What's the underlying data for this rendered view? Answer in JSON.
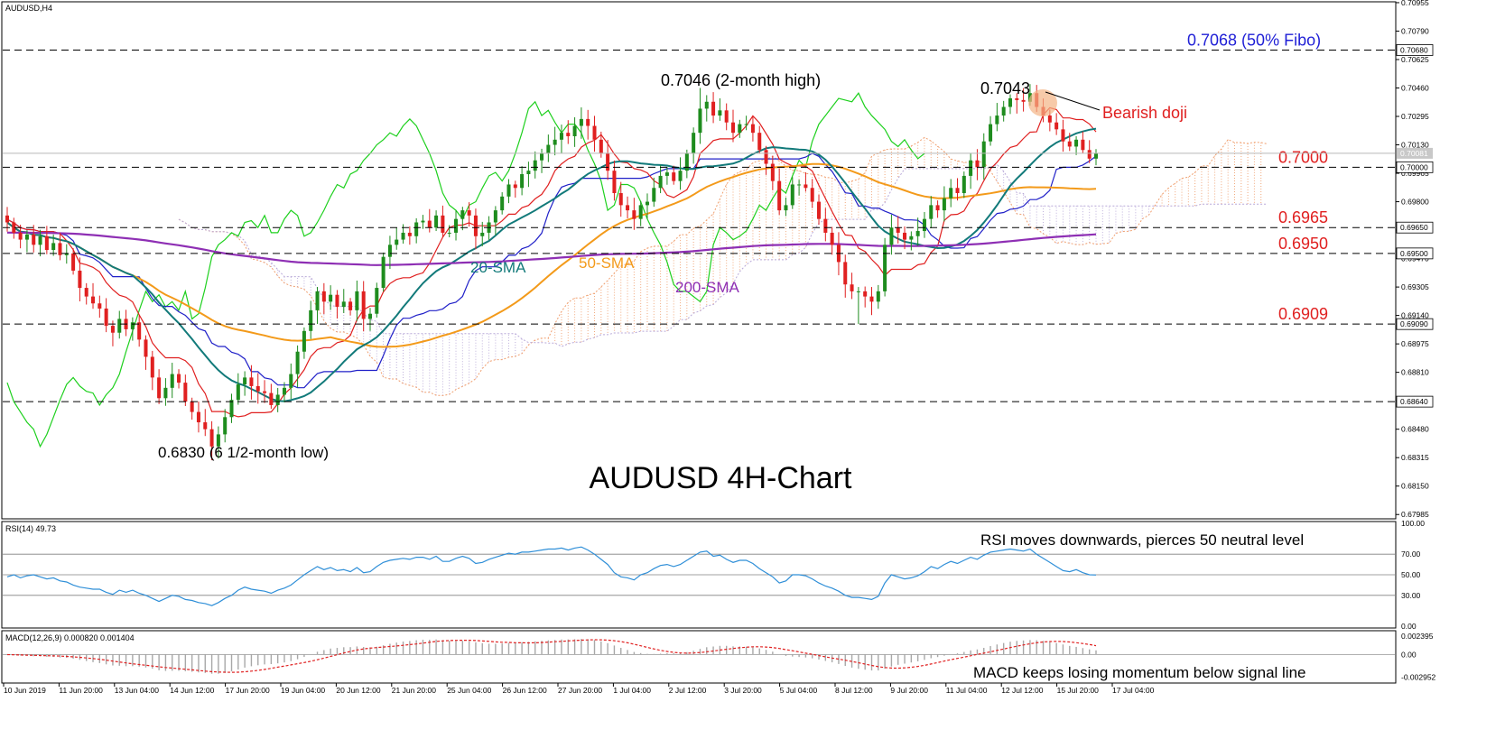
{
  "chart_data": [
    {
      "panel": "price",
      "type": "candlestick",
      "symbol_label": "AUDUSD,H4",
      "title": "AUDUSD 4H-Chart",
      "ylim": [
        0.6796,
        0.7096
      ],
      "y_ticks": [
        "0.70955",
        "0.70790",
        "0.70625",
        "0.70460",
        "0.70295",
        "0.70130",
        "0.69965",
        "0.69800",
        "0.69635",
        "0.69470",
        "0.69305",
        "0.69140",
        "0.68975",
        "0.68810",
        "0.68645",
        "0.68480",
        "0.68315",
        "0.68150",
        "0.67985"
      ],
      "y_tick_values": [
        0.70955,
        0.7079,
        0.70625,
        0.7046,
        0.70295,
        0.7013,
        0.69965,
        0.698,
        0.69635,
        0.6947,
        0.69305,
        0.6914,
        0.68975,
        0.6881,
        0.68645,
        0.6848,
        0.68315,
        0.6815,
        0.67985
      ],
      "x_ticks": [
        "10 Jun 2019",
        "11 Jun 20:00",
        "13 Jun 04:00",
        "14 Jun 12:00",
        "17 Jun 20:00",
        "19 Jun 04:00",
        "20 Jun 12:00",
        "21 Jun 20:00",
        "25 Jun 04:00",
        "26 Jun 12:00",
        "27 Jun 20:00",
        "1 Jul 04:00",
        "2 Jul 12:00",
        "3 Jul 20:00",
        "5 Jul 04:00",
        "8 Jul 12:00",
        "9 Jul 20:00",
        "11 Jul 04:00",
        "12 Jul 12:00",
        "15 Jul 20:00",
        "17 Jul 04:00"
      ],
      "current_price_label": "0.70081",
      "current_price": 0.70081,
      "levels": [
        {
          "value": 0.7068,
          "axis_label": "0.70680",
          "text": "0.7068 (50% Fibo)",
          "color": "#1f1fd6"
        },
        {
          "value": 0.7,
          "axis_label": "0.70000",
          "text": "0.7000",
          "color": "#e02020"
        },
        {
          "value": 0.6965,
          "axis_label": "0.69650",
          "text": "0.6965",
          "color": "#e02020"
        },
        {
          "value": 0.695,
          "axis_label": "0.69500",
          "text": "0.6950",
          "color": "#e02020"
        },
        {
          "value": 0.6909,
          "axis_label": "0.69090",
          "text": "0.6909",
          "color": "#e02020"
        },
        {
          "value": 0.6864,
          "axis_label": "0.68640",
          "text": "",
          "color": "#e02020"
        }
      ],
      "annotations": [
        {
          "text": "0.7046 (2-month high)"
        },
        {
          "text": "0.7043"
        },
        {
          "text": "Bearish doji"
        },
        {
          "text": "0.6830 (6 1/2-month low)"
        },
        {
          "text": "20-SMA"
        },
        {
          "text": "50-SMA"
        },
        {
          "text": "200-SMA"
        }
      ],
      "colors": {
        "bull": "#1e8c1e",
        "bear": "#e02020",
        "sma20": "#127a7a",
        "sma50": "#f39a1a",
        "sma200": "#8e2fb4",
        "tenkan": "#e02020",
        "kijun": "#2020c8",
        "chikou": "#1ed01e",
        "cloud_bull": "#f0a070",
        "cloud_bear": "#b8a8d8"
      },
      "closes": [
        0.6968,
        0.6962,
        0.6958,
        0.6961,
        0.6955,
        0.696,
        0.6952,
        0.6956,
        0.6949,
        0.695,
        0.694,
        0.693,
        0.6925,
        0.6921,
        0.6918,
        0.6908,
        0.6904,
        0.6912,
        0.6906,
        0.691,
        0.69,
        0.689,
        0.6878,
        0.6866,
        0.6872,
        0.688,
        0.6875,
        0.6864,
        0.6858,
        0.6852,
        0.6848,
        0.6838,
        0.6845,
        0.6855,
        0.6865,
        0.6874,
        0.6878,
        0.6873,
        0.687,
        0.6869,
        0.6862,
        0.6868,
        0.6872,
        0.688,
        0.6893,
        0.6905,
        0.6917,
        0.6928,
        0.6922,
        0.6926,
        0.6919,
        0.6922,
        0.6917,
        0.6928,
        0.6912,
        0.6915,
        0.693,
        0.6948,
        0.6955,
        0.6958,
        0.6962,
        0.696,
        0.6968,
        0.6969,
        0.6965,
        0.6972,
        0.6962,
        0.6962,
        0.697,
        0.6975,
        0.6972,
        0.696,
        0.6962,
        0.6968,
        0.6975,
        0.6983,
        0.699,
        0.6988,
        0.6996,
        0.6998,
        0.7004,
        0.7008,
        0.7013,
        0.7016,
        0.702,
        0.7018,
        0.7024,
        0.7028,
        0.7024,
        0.7016,
        0.7008,
        0.6998,
        0.6985,
        0.6978,
        0.6975,
        0.697,
        0.6978,
        0.698,
        0.6988,
        0.6995,
        0.6997,
        0.6992,
        0.6998,
        0.7008,
        0.702,
        0.7034,
        0.7038,
        0.703,
        0.7033,
        0.7026,
        0.702,
        0.7025,
        0.7025,
        0.702,
        0.701,
        0.7002,
        0.6992,
        0.6975,
        0.6978,
        0.699,
        0.699,
        0.6988,
        0.698,
        0.697,
        0.6962,
        0.6955,
        0.6945,
        0.6932,
        0.6928,
        0.6928,
        0.6925,
        0.6922,
        0.6928,
        0.6955,
        0.6965,
        0.6962,
        0.6958,
        0.696,
        0.6963,
        0.697,
        0.6978,
        0.6975,
        0.6982,
        0.6988,
        0.6985,
        0.6995,
        0.7004,
        0.7,
        0.7015,
        0.7025,
        0.703,
        0.7035,
        0.704,
        0.7039,
        0.7038,
        0.7043,
        0.7035,
        0.703,
        0.7026,
        0.7022,
        0.7015,
        0.7012,
        0.7016,
        0.701,
        0.7005,
        0.7008
      ]
    },
    {
      "panel": "rsi",
      "type": "line",
      "header": "RSI(14) 49.73",
      "ylim": [
        0,
        100
      ],
      "y_ticks": [
        "100.00",
        "70.00",
        "50.00",
        "30.00",
        "0.00"
      ],
      "y_tick_values": [
        100,
        70,
        50,
        30,
        0
      ],
      "levels": [
        70,
        50,
        30
      ],
      "annotation": "RSI moves downwards, pierces 50 neutral level",
      "series": [
        {
          "color": "#2f8fd8",
          "values": [
            48,
            50,
            47,
            49,
            50,
            48,
            46,
            47,
            44,
            43,
            40,
            38,
            37,
            36,
            36,
            33,
            31,
            35,
            33,
            35,
            32,
            30,
            27,
            24,
            27,
            30,
            29,
            26,
            25,
            23,
            22,
            20,
            23,
            27,
            30,
            35,
            38,
            36,
            35,
            34,
            32,
            35,
            37,
            40,
            45,
            50,
            54,
            58,
            55,
            57,
            54,
            55,
            53,
            57,
            52,
            53,
            58,
            62,
            64,
            65,
            66,
            65,
            67,
            67,
            65,
            68,
            63,
            63,
            66,
            68,
            66,
            61,
            62,
            65,
            67,
            69,
            71,
            70,
            72,
            72,
            73,
            74,
            75,
            75,
            76,
            74,
            76,
            77,
            74,
            70,
            65,
            60,
            52,
            48,
            47,
            45,
            50,
            52,
            56,
            59,
            60,
            58,
            60,
            64,
            68,
            72,
            73,
            68,
            69,
            65,
            62,
            64,
            64,
            61,
            56,
            52,
            48,
            42,
            44,
            50,
            50,
            49,
            46,
            42,
            39,
            37,
            34,
            30,
            28,
            28,
            27,
            26,
            29,
            42,
            50,
            48,
            46,
            47,
            49,
            53,
            58,
            56,
            60,
            63,
            61,
            64,
            67,
            65,
            69,
            72,
            73,
            74,
            75,
            74,
            73,
            75,
            70,
            66,
            62,
            58,
            54,
            53,
            55,
            52,
            50,
            49.73
          ]
        }
      ]
    },
    {
      "panel": "macd",
      "type": "bar+line",
      "header": "MACD(12,26,9) 0.000820 0.001404",
      "y_ticks": [
        "0.002395",
        "0.00",
        "-0.002952"
      ],
      "y_tick_values": [
        0.002395,
        0,
        -0.002952
      ],
      "ylim": [
        -0.0036,
        0.003
      ],
      "annotation": "MACD keeps losing momentum below signal line",
      "colors": {
        "histogram": "#a8a8a8",
        "signal": "#e02020"
      }
    }
  ]
}
